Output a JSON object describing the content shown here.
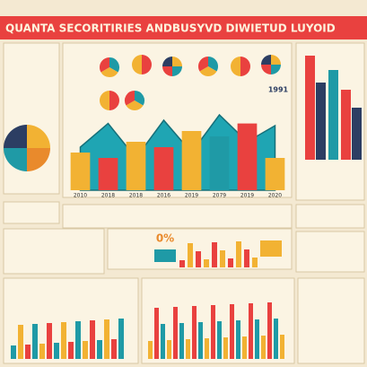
{
  "header": {
    "title": "QUANTA SECORITIRIES ANDBUSYVD DIWIETUD LUYOID"
  },
  "labels": {
    "percent": "0%",
    "year": "1991"
  },
  "chart_data": {
    "type": "bar",
    "categories": [
      "2010",
      "2018",
      "2018",
      "2016",
      "2019",
      "2079",
      "2019",
      "2020"
    ],
    "values": [
      35,
      30,
      45,
      40,
      55,
      50,
      62,
      30
    ],
    "colors": [
      "#f2b233",
      "#e9413f",
      "#f2b233",
      "#e9413f",
      "#f2b233",
      "#1f9aa6",
      "#e9413f",
      "#f2b233"
    ],
    "trend": [
      40,
      62,
      30,
      65,
      35,
      70,
      45,
      60
    ],
    "trend_color": "#1fa5b3",
    "ylim": [
      0,
      100
    ]
  }
}
